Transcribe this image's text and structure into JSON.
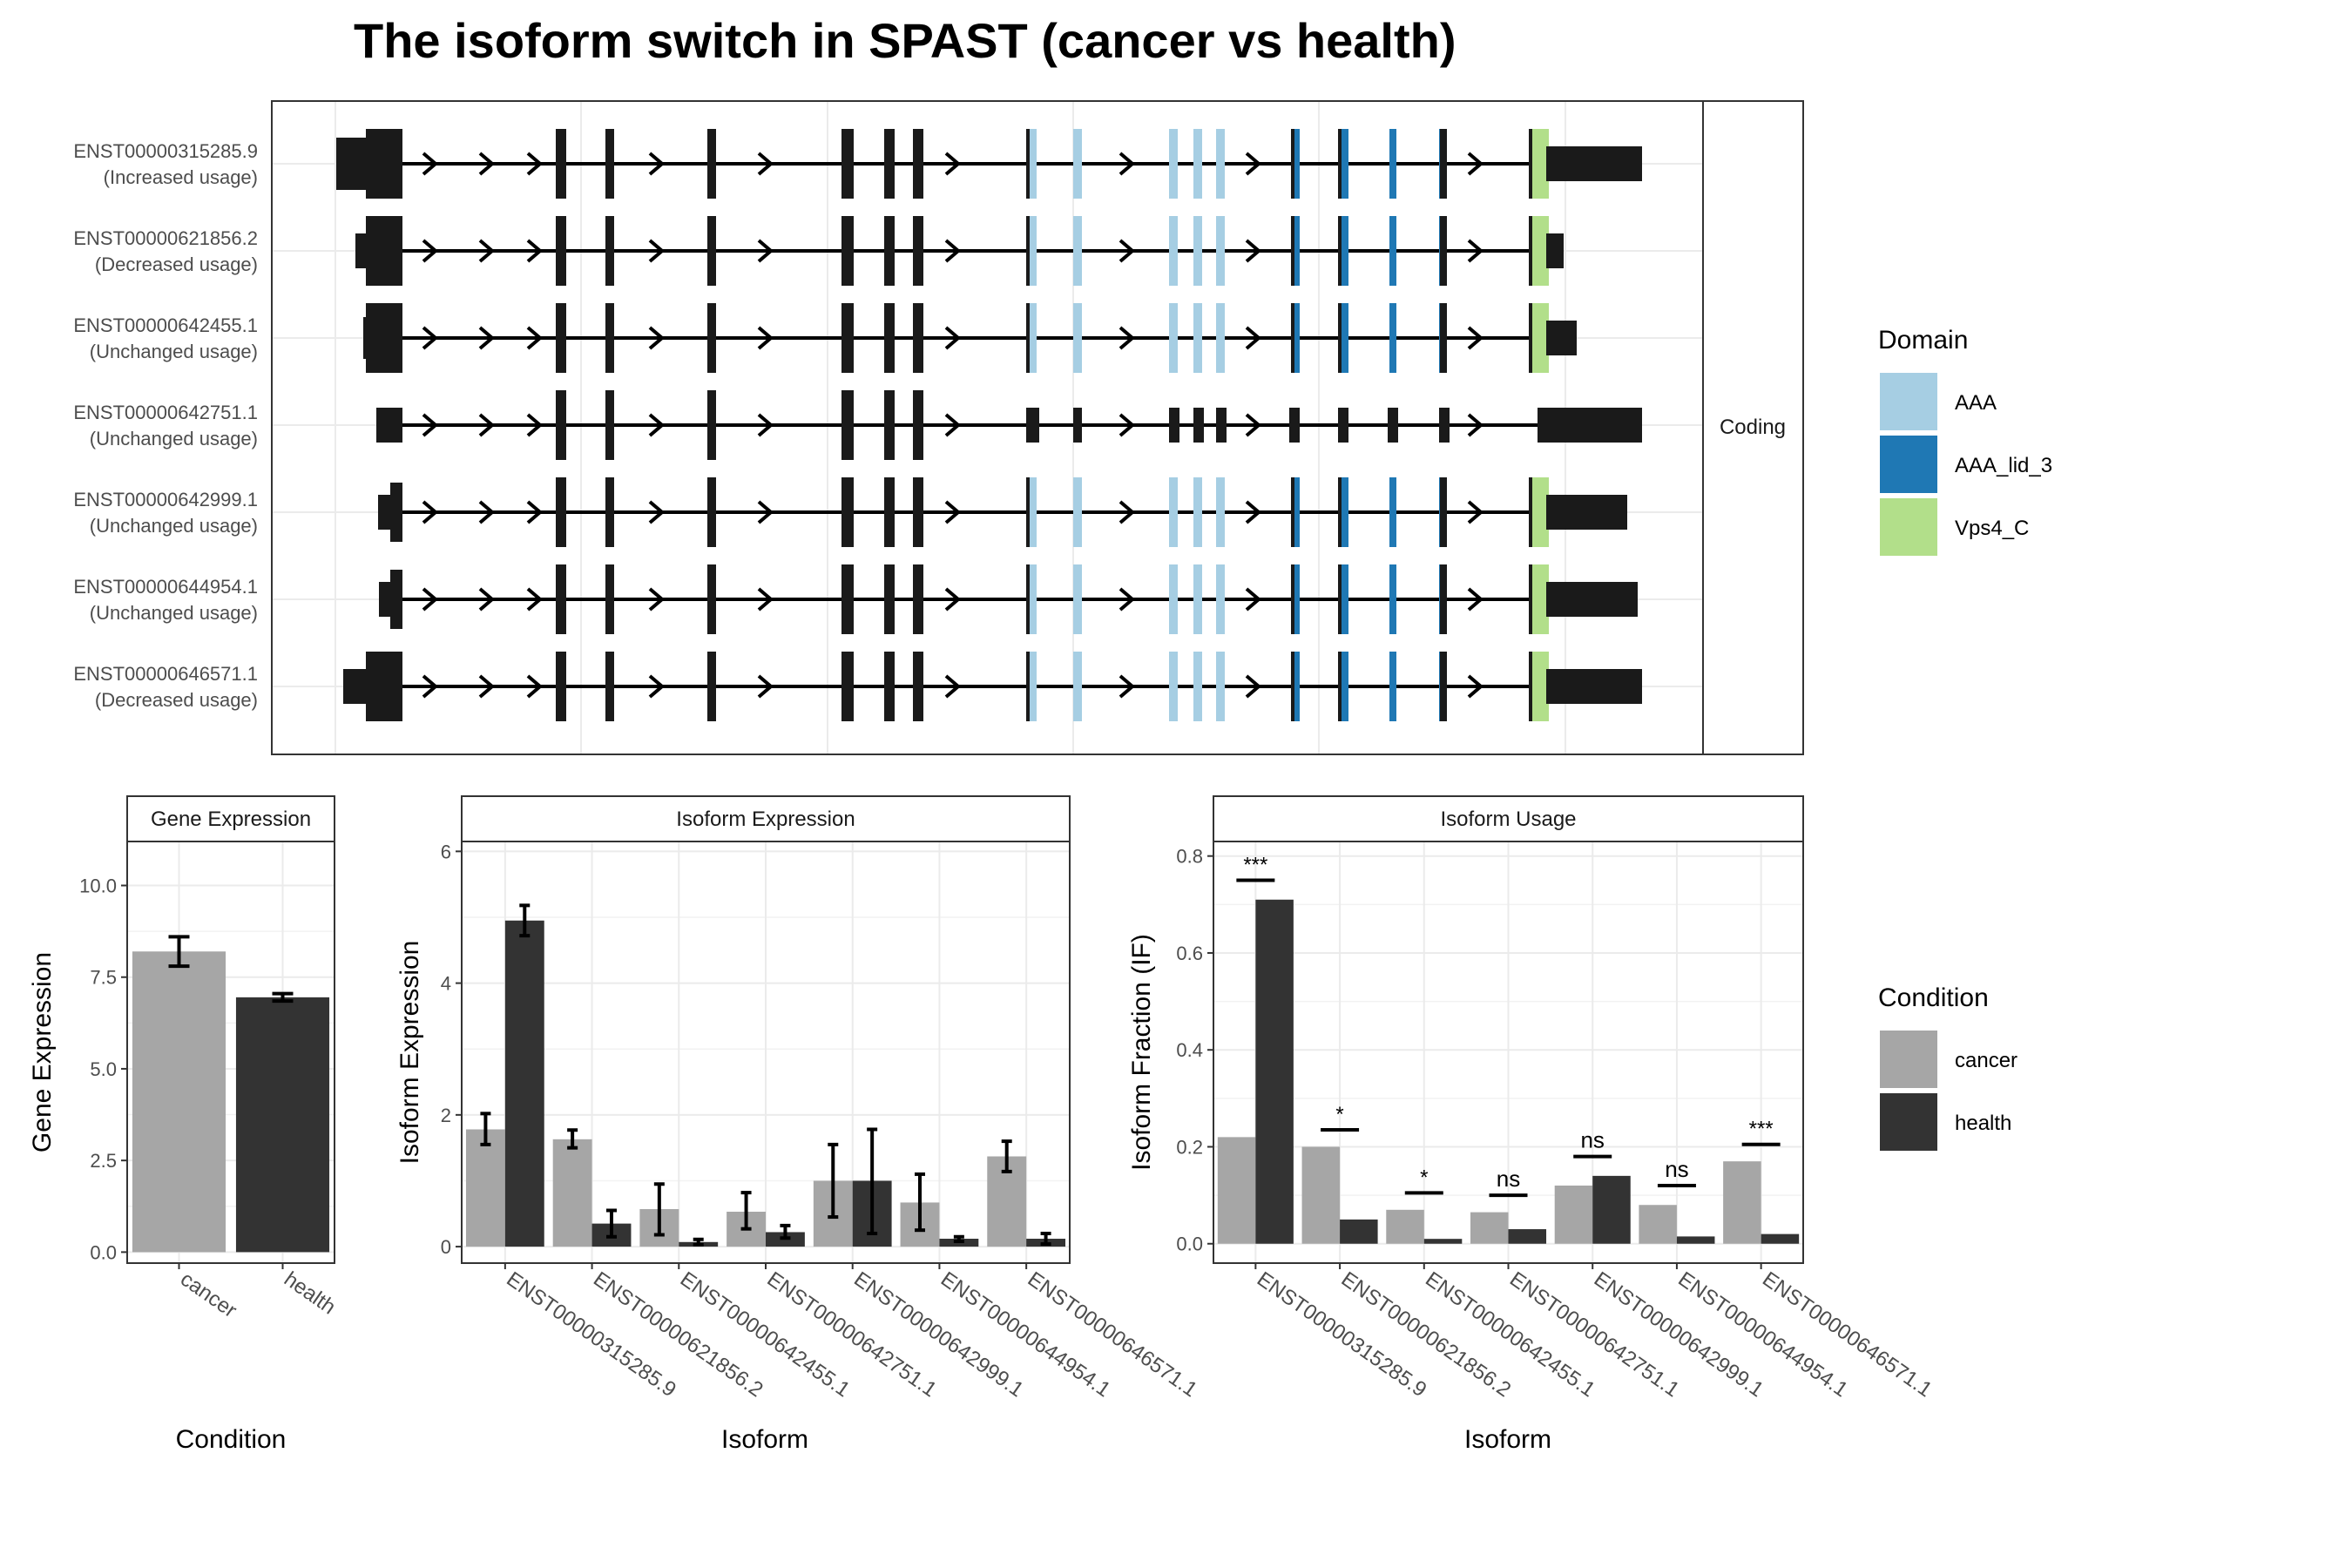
{
  "title": "The isoform switch in SPAST (cancer vs health)",
  "colors": {
    "cancer": "#a6a6a6",
    "health": "#333333",
    "exon": "#1a1a1a",
    "AAA": "#a6cee3",
    "AAA_lid_3": "#1f78b4",
    "Vps4_C": "#b2df8a",
    "grid": "#ebebeb",
    "panel_border": "#333333"
  },
  "structure_panel": {
    "strip_label": "Coding",
    "isoforms": [
      {
        "id": "ENST00000315285.9",
        "usage": "(Increased usage)"
      },
      {
        "id": "ENST00000621856.2",
        "usage": "(Decreased usage)"
      },
      {
        "id": "ENST00000642455.1",
        "usage": "(Unchanged usage)"
      },
      {
        "id": "ENST00000642751.1",
        "usage": "(Unchanged usage)"
      },
      {
        "id": "ENST00000642999.1",
        "usage": "(Unchanged usage)"
      },
      {
        "id": "ENST00000644954.1",
        "usage": "(Unchanged usage)"
      },
      {
        "id": "ENST00000646571.1",
        "usage": "(Decreased usage)"
      }
    ]
  },
  "domain_legend": {
    "title": "Domain",
    "items": [
      {
        "label": "AAA",
        "color": "#a6cee3"
      },
      {
        "label": "AAA_lid_3",
        "color": "#1f78b4"
      },
      {
        "label": "Vps4_C",
        "color": "#b2df8a"
      }
    ]
  },
  "condition_legend": {
    "title": "Condition",
    "items": [
      {
        "label": "cancer",
        "color": "#a6a6a6"
      },
      {
        "label": "health",
        "color": "#333333"
      }
    ]
  },
  "chart_data": [
    {
      "type": "bar",
      "title": "Gene Expression",
      "xlabel": "Condition",
      "ylabel": "Gene Expression",
      "categories": [
        "cancer",
        "health"
      ],
      "values": [
        8.2,
        6.95
      ],
      "errors": [
        [
          7.8,
          8.6
        ],
        [
          6.85,
          7.05
        ]
      ],
      "ylim": [
        -0.3,
        11.2
      ],
      "yticks": [
        "0.0",
        "2.5",
        "5.0",
        "7.5",
        "10.0"
      ],
      "ytick_values": [
        0,
        2.5,
        5,
        7.5,
        10
      ]
    },
    {
      "type": "bar",
      "title": "Isoform Expression",
      "xlabel": "Isoform",
      "ylabel": "Isoform Expression",
      "categories": [
        "ENST00000315285.9",
        "ENST00000621856.2",
        "ENST00000642455.1",
        "ENST00000642751.1",
        "ENST00000642999.1",
        "ENST00000644954.1",
        "ENST00000646571.1"
      ],
      "series": [
        {
          "name": "cancer",
          "values": [
            1.78,
            1.63,
            0.57,
            0.53,
            1.0,
            0.67,
            1.37
          ],
          "errors": [
            [
              1.55,
              2.02
            ],
            [
              1.5,
              1.77
            ],
            [
              0.18,
              0.95
            ],
            [
              0.27,
              0.82
            ],
            [
              0.45,
              1.55
            ],
            [
              0.25,
              1.1
            ],
            [
              1.14,
              1.6
            ]
          ]
        },
        {
          "name": "health",
          "values": [
            4.95,
            0.35,
            0.07,
            0.22,
            1.0,
            0.12,
            0.12
          ],
          "errors": [
            [
              4.72,
              5.18
            ],
            [
              0.15,
              0.55
            ],
            [
              0.03,
              0.11
            ],
            [
              0.13,
              0.32
            ],
            [
              0.2,
              1.78
            ],
            [
              0.08,
              0.15
            ],
            [
              0.04,
              0.2
            ]
          ]
        }
      ],
      "ylim": [
        -0.25,
        6.15
      ],
      "yticks": [
        "0",
        "2",
        "4",
        "6"
      ],
      "ytick_values": [
        0,
        2,
        4,
        6
      ]
    },
    {
      "type": "bar",
      "title": "Isoform Usage",
      "xlabel": "Isoform",
      "ylabel": "Isoform Fraction (IF)",
      "categories": [
        "ENST00000315285.9",
        "ENST00000621856.2",
        "ENST00000642455.1",
        "ENST00000642751.1",
        "ENST00000642999.1",
        "ENST00000644954.1",
        "ENST00000646571.1"
      ],
      "series": [
        {
          "name": "cancer",
          "values": [
            0.22,
            0.2,
            0.07,
            0.065,
            0.12,
            0.08,
            0.17
          ]
        },
        {
          "name": "health",
          "values": [
            0.71,
            0.05,
            0.01,
            0.03,
            0.14,
            0.015,
            0.02
          ]
        }
      ],
      "significance": [
        {
          "label": "***",
          "y": 0.75
        },
        {
          "label": "*",
          "y": 0.235
        },
        {
          "label": "*",
          "y": 0.105
        },
        {
          "label": "ns",
          "y": 0.1
        },
        {
          "label": "ns",
          "y": 0.18
        },
        {
          "label": "ns",
          "y": 0.12
        },
        {
          "label": "***",
          "y": 0.205
        }
      ],
      "ylim": [
        -0.04,
        0.83
      ],
      "yticks": [
        "0.0",
        "0.2",
        "0.4",
        "0.6",
        "0.8"
      ],
      "ytick_values": [
        0,
        0.2,
        0.4,
        0.6,
        0.8
      ]
    }
  ]
}
